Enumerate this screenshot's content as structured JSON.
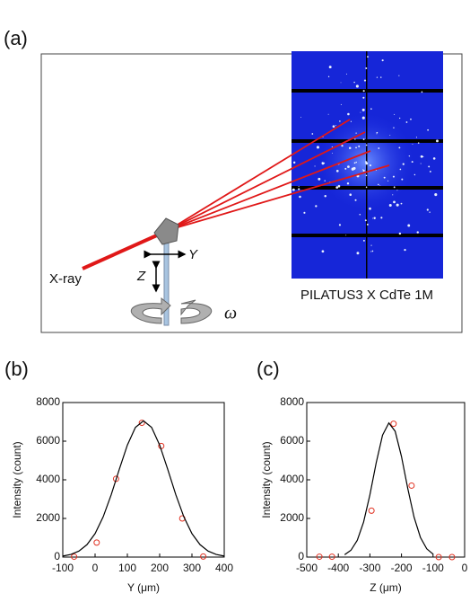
{
  "diagram": {
    "label": "(a)",
    "beam_label": "X-ray",
    "y_axis_label": "Y",
    "z_axis_label": "Z",
    "rotation_label": "ω",
    "detector_label": "PILATUS3 X CdTe 1M"
  },
  "chart_data": [
    {
      "type": "scatter",
      "label": "(b)",
      "xlabel": "Y (μm)",
      "ylabel": "Intensity (count)",
      "xlim": [
        -100,
        400
      ],
      "xticks": [
        -100,
        0,
        100,
        200,
        300,
        400
      ],
      "ylim": [
        0,
        8000
      ],
      "yticks": [
        0,
        2000,
        4000,
        6000,
        8000
      ],
      "series": [
        {
          "style": "markers",
          "color": "#e03020",
          "x": [
            -65,
            5,
            65,
            145,
            205,
            270,
            335
          ],
          "values": [
            20,
            750,
            4050,
            6950,
            5750,
            2000,
            30
          ]
        },
        {
          "style": "line",
          "color": "#000000",
          "x": [
            -100,
            -75,
            -50,
            -25,
            0,
            25,
            50,
            75,
            100,
            125,
            150,
            175,
            200,
            225,
            250,
            275,
            300,
            325,
            350,
            375,
            400
          ],
          "values": [
            53,
            135,
            310,
            644,
            1215,
            2080,
            3228,
            4543,
            5799,
            6714,
            7050,
            6714,
            5799,
            4543,
            3228,
            2080,
            1215,
            644,
            310,
            135,
            53
          ]
        }
      ]
    },
    {
      "type": "scatter",
      "label": "(c)",
      "xlabel": "Z (μm)",
      "ylabel": "Intensity (count)",
      "xlim": [
        -500,
        0
      ],
      "xticks": [
        -500,
        -400,
        -300,
        -200,
        -100,
        0
      ],
      "ylim": [
        0,
        8000
      ],
      "yticks": [
        0,
        2000,
        4000,
        6000,
        8000
      ],
      "series": [
        {
          "style": "markers",
          "color": "#e03020",
          "x": [
            -460,
            -420,
            -295,
            -225,
            -168,
            -82,
            -40
          ],
          "values": [
            20,
            20,
            2400,
            6900,
            3700,
            0,
            0
          ]
        },
        {
          "style": "line",
          "color": "#000000",
          "x": [
            -380,
            -360,
            -340,
            -320,
            -300,
            -280,
            -260,
            -240,
            -220,
            -200,
            -180,
            -160,
            -140,
            -120,
            -100
          ],
          "values": [
            123,
            354,
            867,
            1811,
            3221,
            4883,
            6308,
            6944,
            6514,
            5207,
            3547,
            2059,
            1018,
            429,
            153
          ]
        }
      ]
    }
  ]
}
